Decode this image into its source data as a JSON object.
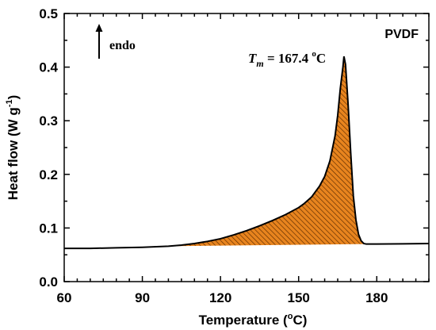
{
  "chart_data": {
    "type": "area",
    "title": "",
    "xlabel": {
      "main": "Temperature (",
      "sup": "o",
      "tail": "C)"
    },
    "ylabel": {
      "main": "Heat flow (W g",
      "sup": "-1",
      "tail": ")"
    },
    "xlim": [
      60,
      200
    ],
    "ylim": [
      0.0,
      0.5
    ],
    "x_ticks": [
      60,
      90,
      120,
      150,
      180
    ],
    "y_ticks": [
      "0.0",
      "0.1",
      "0.2",
      "0.3",
      "0.4",
      "0.5"
    ],
    "x_minor_step": 5,
    "y_minor_step": 0.05,
    "grid": false,
    "series": [
      {
        "x": [
          60,
          70,
          80,
          90,
          100,
          105,
          110,
          115,
          120,
          125,
          130,
          135,
          140,
          145,
          150,
          152,
          155,
          158,
          160,
          162,
          164,
          165,
          166,
          167,
          167.4,
          168,
          169,
          170,
          171,
          172,
          173,
          174,
          175,
          176,
          177,
          178,
          180,
          190,
          200
        ],
        "y": [
          0.062,
          0.062,
          0.063,
          0.064,
          0.066,
          0.068,
          0.071,
          0.075,
          0.08,
          0.087,
          0.095,
          0.104,
          0.114,
          0.125,
          0.138,
          0.145,
          0.158,
          0.178,
          0.196,
          0.225,
          0.272,
          0.31,
          0.36,
          0.4,
          0.42,
          0.405,
          0.33,
          0.24,
          0.16,
          0.115,
          0.088,
          0.076,
          0.071,
          0.07,
          0.07,
          0.07,
          0.07,
          0.0705,
          0.071
        ],
        "fill_between": {
          "x_start": 100,
          "x_end": 176,
          "baseline": [
            [
              100,
              0.066
            ],
            [
              176,
              0.07
            ]
          ]
        },
        "line_color": "#000000",
        "fill_color": "#e8841e",
        "hatch_color": "#5a2a00"
      }
    ],
    "annotations": [
      {
        "id": "endo",
        "text": "endo",
        "arrow": "up"
      },
      {
        "id": "sample",
        "text": "PVDF"
      },
      {
        "id": "tm",
        "symbol": "T",
        "subscript": "m",
        "value_text": " = 167.4 ",
        "degree": "o",
        "unit": "C"
      }
    ]
  }
}
